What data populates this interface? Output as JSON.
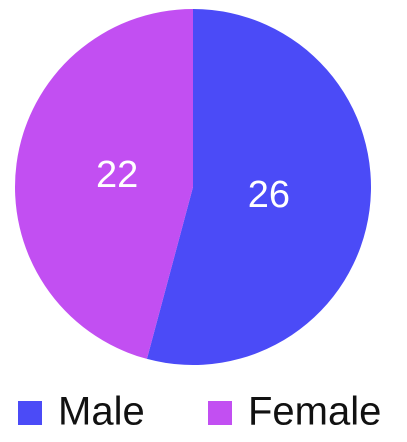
{
  "chart_data": {
    "type": "pie",
    "categories": [
      "Male",
      "Female"
    ],
    "values": [
      26,
      22
    ],
    "colors": [
      "#4b4bf7",
      "#c24ff2"
    ]
  }
}
